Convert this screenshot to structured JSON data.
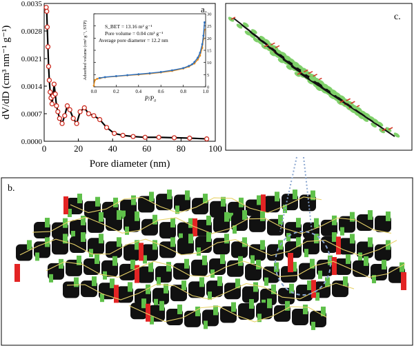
{
  "chart_data": [
    {
      "type": "scatter",
      "panel_label": "a.",
      "xlabel": "Pore diameter (nm)",
      "ylabel": "dV/dD (cm³ nm⁻¹ g⁻¹)",
      "xlim": [
        0,
        100
      ],
      "ylim": [
        0,
        0.0035
      ],
      "xticks": [
        "0",
        "20",
        "40",
        "60",
        "80",
        "100"
      ],
      "yticks": [
        "0.0000",
        "0.0007",
        "0.0014",
        "0.0021",
        "0.0028",
        "0.0035"
      ],
      "line_color": "#000000",
      "marker_color": "#cc2a1e",
      "series": [
        {
          "x": [
            1.2,
            1.5,
            1.8,
            2.2,
            2.6,
            3.0,
            3.5,
            4.0,
            4.6,
            5.2,
            5.8,
            6.5,
            7.2,
            8.0,
            9.0,
            10.5,
            12.0,
            13.5,
            15.0,
            17.0,
            19.0,
            21.0,
            23.5,
            26.0,
            29.0,
            32.5,
            36.5,
            41.0,
            46.0,
            52.0,
            59.0,
            67.0,
            76.0,
            85.0,
            95.0
          ],
          "y": [
            0.0034,
            0.0033,
            0.0029,
            0.0024,
            0.0019,
            0.00155,
            0.00125,
            0.0011,
            0.00095,
            0.00115,
            0.00145,
            0.0012,
            0.0009,
            0.00075,
            0.00058,
            0.00045,
            0.00065,
            0.0009,
            0.0008,
            0.00058,
            0.00045,
            0.00075,
            0.00085,
            0.0007,
            0.00065,
            0.00055,
            0.00035,
            0.0002,
            0.00015,
            0.00012,
            0.0001,
            0.0001,
            9e-05,
            8e-05,
            6e-05
          ]
        }
      ]
    },
    {
      "type": "line",
      "inset": true,
      "xlabel": "P/P₀",
      "ylabel": "Adsorbed volume (cm³ g⁻¹, STP)",
      "xlim": [
        0,
        1.0
      ],
      "ylim": [
        0,
        30
      ],
      "xticks": [
        "0.0",
        "0.2",
        "0.4",
        "0.6",
        "0.8",
        "1.0"
      ],
      "yticks": [
        "0",
        "5",
        "10",
        "15",
        "20",
        "25",
        "30"
      ],
      "annotations": [
        "S_BET = 13.16 m² g⁻¹",
        "Pore volume = 0.04 cm³ g⁻¹",
        "Average pore diameter = 12.2 nm"
      ],
      "series": [
        {
          "color": "#e08a1e",
          "x": [
            0.0,
            0.01,
            0.03,
            0.06,
            0.1,
            0.2,
            0.3,
            0.4,
            0.5,
            0.6,
            0.7,
            0.8,
            0.85,
            0.9,
            0.93,
            0.95,
            0.97,
            0.98,
            0.99
          ],
          "y": [
            0.5,
            2.8,
            3.3,
            3.6,
            3.9,
            4.3,
            4.7,
            5.0,
            5.4,
            5.9,
            6.5,
            7.5,
            8.3,
            9.6,
            11.2,
            12.8,
            16.0,
            19.5,
            23.5
          ]
        },
        {
          "color": "#2a6fbf",
          "x": [
            0.99,
            0.98,
            0.97,
            0.95,
            0.93,
            0.9,
            0.88,
            0.85,
            0.8,
            0.7,
            0.6,
            0.5,
            0.4,
            0.3,
            0.2,
            0.1,
            0.05
          ],
          "y": [
            26.5,
            21.0,
            17.5,
            14.0,
            12.0,
            10.2,
            9.3,
            8.6,
            7.7,
            6.8,
            6.1,
            5.6,
            5.2,
            4.8,
            4.4,
            4.0,
            3.6
          ]
        }
      ]
    }
  ],
  "panels": {
    "b_label": "b.",
    "c_label": "c."
  }
}
